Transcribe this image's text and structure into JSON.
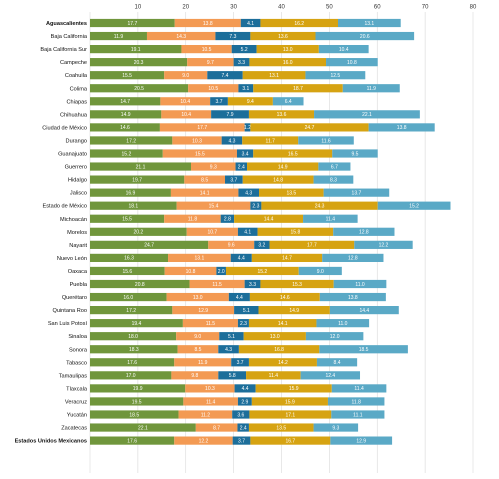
{
  "chart_data": {
    "type": "bar",
    "orientation": "horizontal",
    "stacked": true,
    "xlim": [
      0,
      80
    ],
    "x_ticks": [
      "10",
      "20",
      "30",
      "40",
      "50",
      "60",
      "70",
      "80"
    ],
    "grid": true,
    "legend": "none",
    "categories": [
      "Aguascalientes",
      "Baja California",
      "Baja California Sur",
      "Campeche",
      "Coahuila",
      "Colima",
      "Chiapas",
      "Chihuahua",
      "Ciudad de México",
      "Durango",
      "Guanajuato",
      "Guerrero",
      "Hidalgo",
      "Jalisco",
      "Estado de México",
      "Michoacán",
      "Morelos",
      "Nayarit",
      "Nuevo León",
      "Oaxaca",
      "Puebla",
      "Querétaro",
      "Quintana Roo",
      "San Luis Potosí",
      "Sinaloa",
      "Sonora",
      "Tabasco",
      "Tamaulipas",
      "Tlaxcala",
      "Veracruz",
      "Yucatán",
      "Zacatecas",
      "Estados Unidos Mexicanos"
    ],
    "bold_categories": [
      "Aguascalientes",
      "Estados Unidos Mexicanos"
    ],
    "series": [
      {
        "color": "#70963c",
        "values": [
          17.7,
          11.9,
          19.1,
          20.3,
          15.5,
          20.5,
          14.7,
          14.9,
          14.6,
          17.2,
          15.2,
          21.1,
          19.7,
          16.9,
          18.1,
          15.5,
          20.2,
          24.7,
          16.3,
          15.6,
          20.8,
          16.0,
          17.2,
          19.4,
          18.0,
          18.3,
          17.6,
          17.0,
          19.9,
          19.5,
          18.5,
          22.1,
          17.6
        ]
      },
      {
        "color": "#f39a53",
        "values": [
          13.8,
          14.3,
          10.5,
          9.7,
          9.0,
          10.5,
          10.4,
          10.4,
          17.7,
          10.3,
          15.5,
          9.3,
          8.5,
          14.1,
          15.4,
          11.8,
          10.7,
          9.6,
          13.1,
          10.8,
          11.5,
          13.0,
          12.9,
          11.5,
          9.0,
          8.5,
          11.9,
          9.8,
          10.3,
          11.4,
          11.2,
          8.7,
          12.2
        ]
      },
      {
        "color": "#1c6e9a",
        "values": [
          4.1,
          7.3,
          5.2,
          3.3,
          7.4,
          3.1,
          3.7,
          7.9,
          1.2,
          4.3,
          3.4,
          2.4,
          3.7,
          4.3,
          2.3,
          2.8,
          4.1,
          3.2,
          4.4,
          2.0,
          3.3,
          4.4,
          5.1,
          2.3,
          5.1,
          4.3,
          3.7,
          5.8,
          4.4,
          2.9,
          3.6,
          2.4,
          3.7
        ]
      },
      {
        "color": "#d6a312",
        "values": [
          16.2,
          13.6,
          13.0,
          16.0,
          13.1,
          18.7,
          9.4,
          13.6,
          24.7,
          11.7,
          16.5,
          14.9,
          14.8,
          13.5,
          24.3,
          14.4,
          15.8,
          17.7,
          14.7,
          15.2,
          15.3,
          14.6,
          14.9,
          14.1,
          13.0,
          16.8,
          14.2,
          11.4,
          15.9,
          15.9,
          17.1,
          13.5,
          16.7
        ]
      },
      {
        "color": "#5aa9c6",
        "values": [
          13.1,
          20.6,
          10.4,
          10.8,
          12.5,
          11.9,
          6.4,
          22.1,
          13.8,
          11.6,
          9.5,
          6.7,
          8.3,
          13.7,
          15.2,
          11.4,
          12.8,
          12.2,
          12.8,
          9.0,
          11.0,
          13.8,
          14.4,
          11.0,
          12.0,
          18.5,
          8.4,
          12.4,
          11.4,
          11.8,
          11.1,
          9.3,
          12.9
        ]
      }
    ]
  }
}
